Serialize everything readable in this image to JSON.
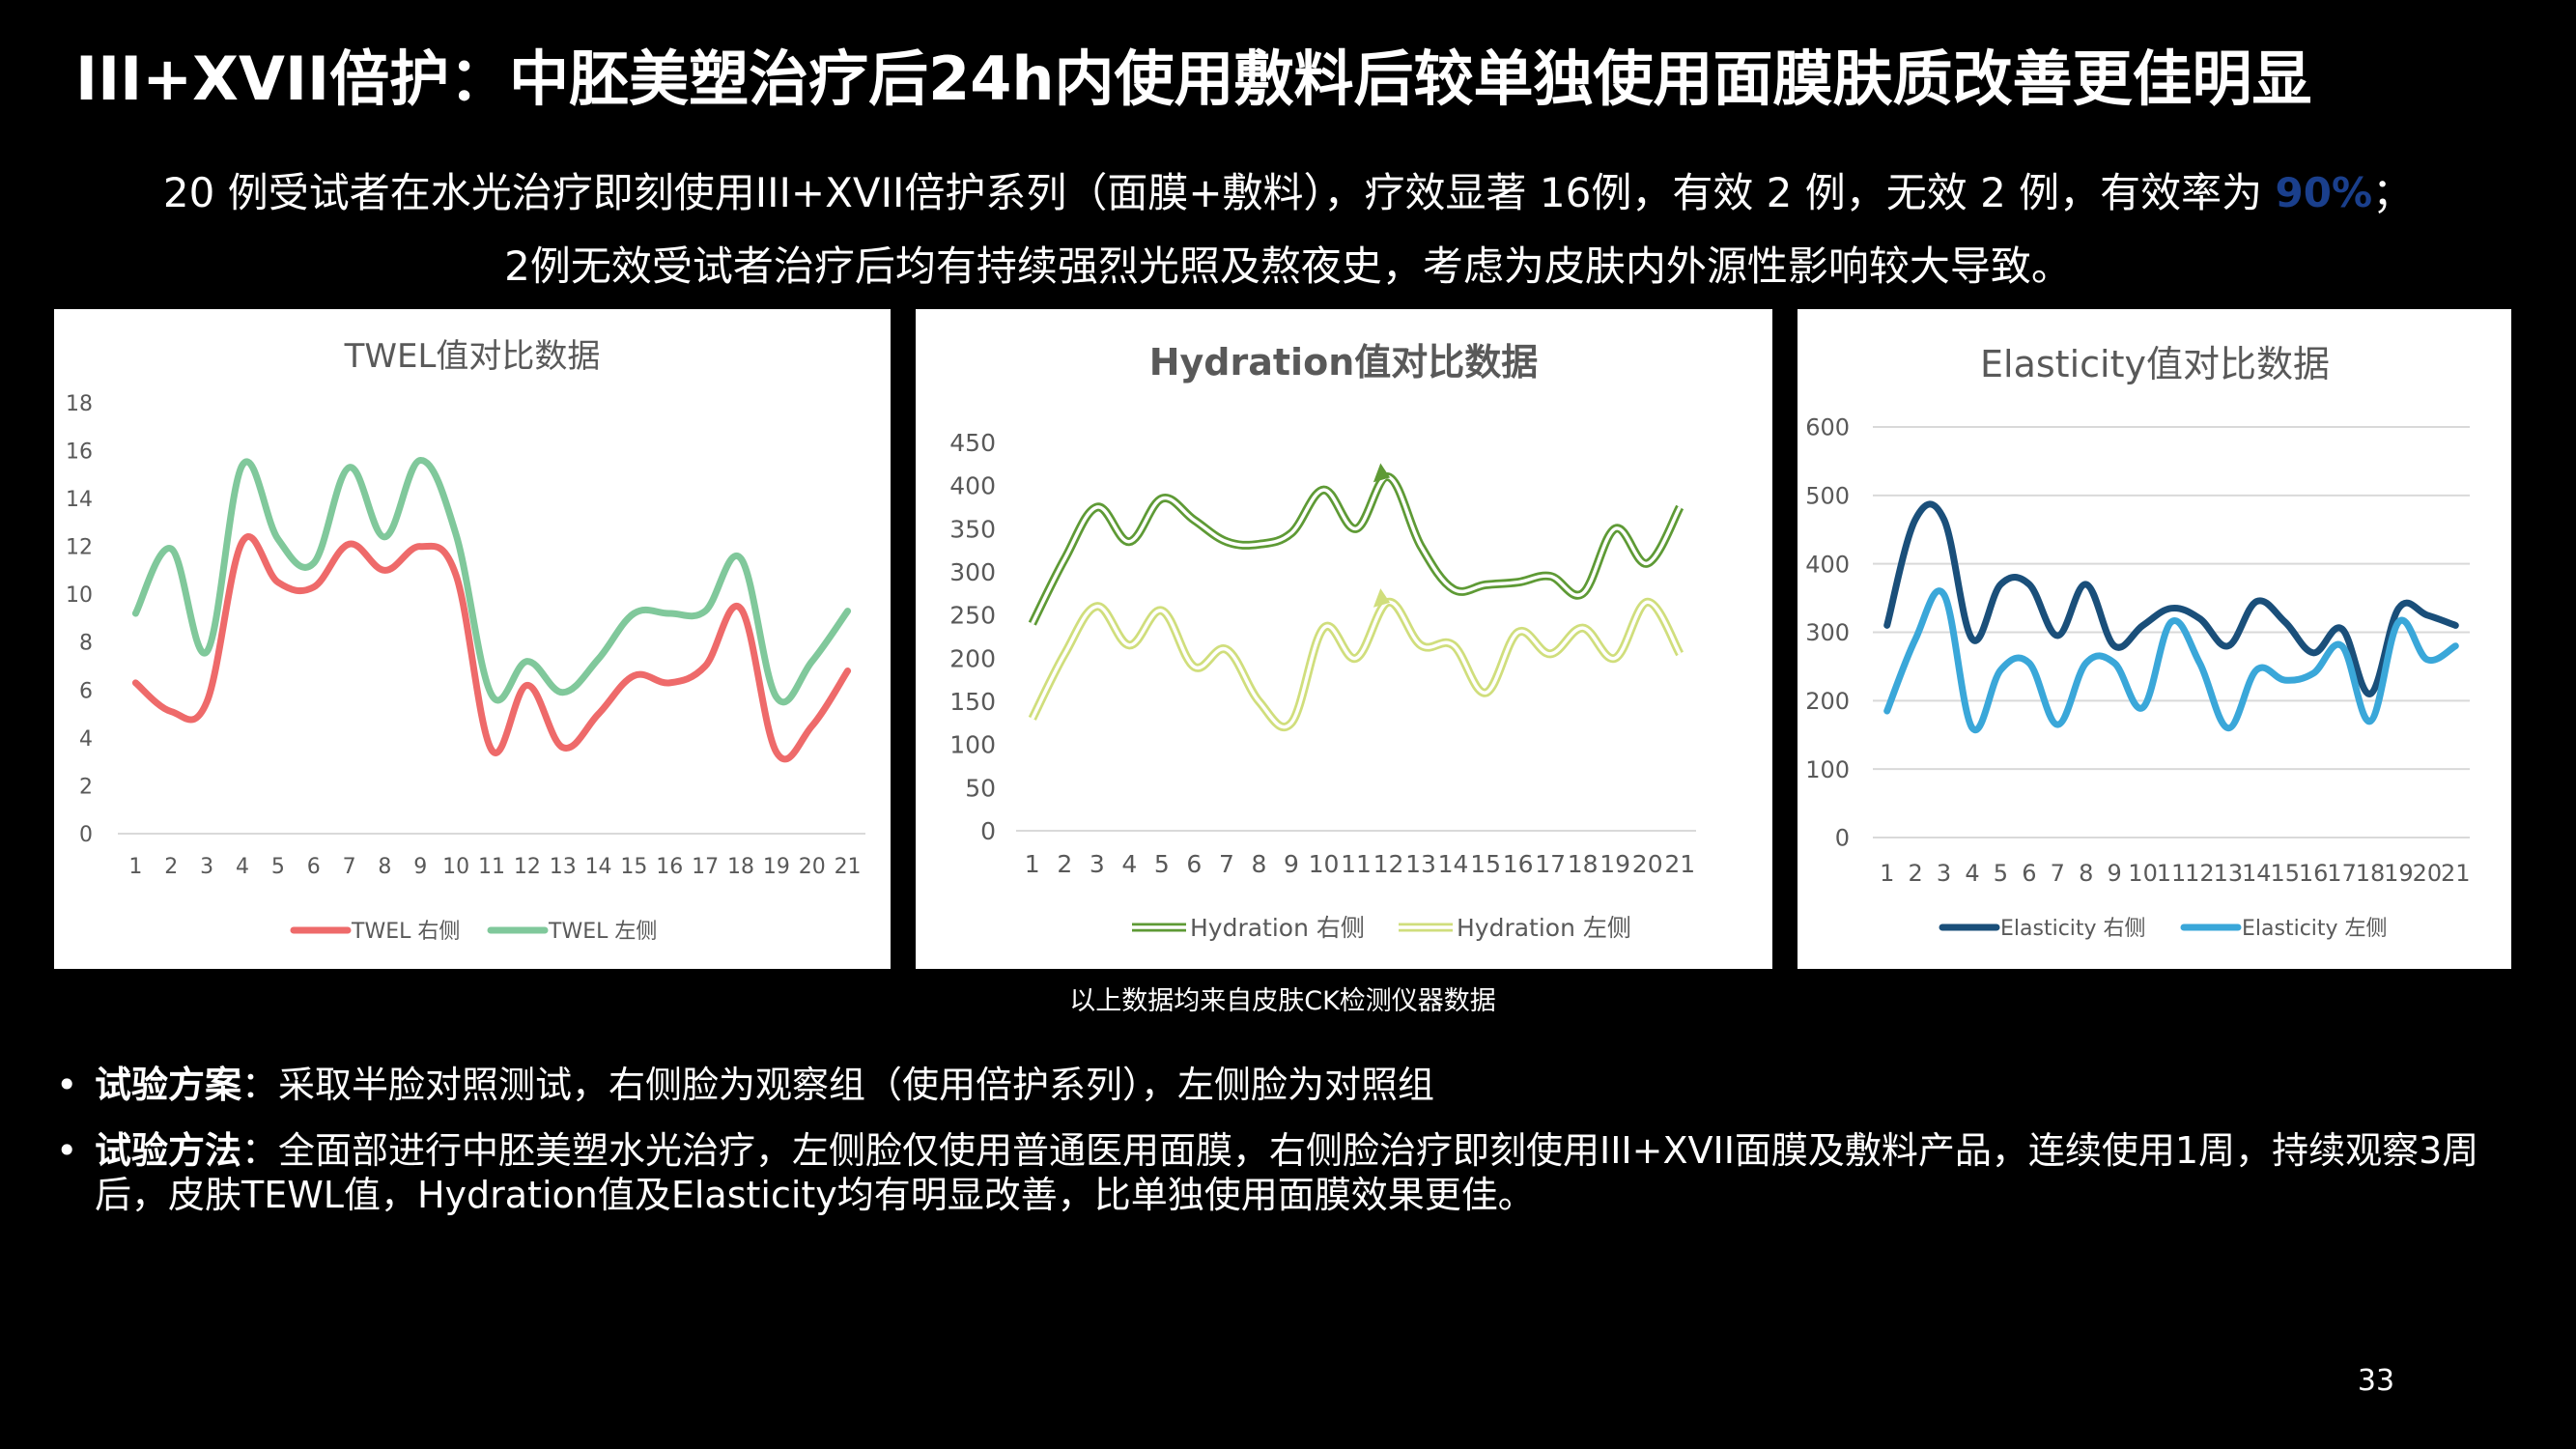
{
  "slide": {
    "title": "III+XVII倍护：中胚美塑治疗后24h内使用敷料后较单独使用面膜肤质改善更佳明显",
    "intro_line1_before": "20 例受试者在水光治疗即刻使用III+XVII倍护系列（面膜+敷料），疗效显著 16例，有效 2 例，无效 2 例，有效率为 ",
    "intro_highlight": "90%",
    "intro_line1_after": "；",
    "intro_line2": "2例无效受试者治疗后均有持续强烈光照及熬夜史，考虑为皮肤内外源性影响较大导致。",
    "caption": "以上数据均来自皮肤CK检测仪器数据",
    "bullet1_label": "试验方案",
    "bullet1_text": "：采取半脸对照测试，右侧脸为观察组（使用倍护系列），左侧脸为对照组",
    "bullet2_label": "试验方法",
    "bullet2_text": "：全面部进行中胚美塑水光治疗，左侧脸仅使用普通医用面膜，右侧脸治疗即刻使用III+XVII面膜及敷料产品，连续使用1周，持续观察3周后，皮肤TEWL值，Hydration值及Elasticity均有明显改善，比单独使用面膜效果更佳。",
    "bullet_mark": "•",
    "page_number": "33",
    "highlight_color": "#1a3f8c"
  },
  "chart_data": [
    {
      "type": "line",
      "title": "TWEL值对比数据",
      "categories": [
        "1",
        "2",
        "3",
        "4",
        "5",
        "6",
        "7",
        "8",
        "9",
        "10",
        "11",
        "12",
        "13",
        "14",
        "15",
        "16",
        "17",
        "18",
        "19",
        "20",
        "21"
      ],
      "ylim": [
        0,
        18
      ],
      "yticks": [
        0,
        2,
        4,
        6,
        8,
        10,
        12,
        14,
        16,
        18
      ],
      "grid": false,
      "legend": "bottom",
      "smooth": true,
      "series": [
        {
          "name": "TWEL 右侧",
          "color": "#ee6a6a",
          "values": [
            6.3,
            5.1,
            5.5,
            12.2,
            10.5,
            10.3,
            12.1,
            11.0,
            12.0,
            10.8,
            3.5,
            6.2,
            3.6,
            5.0,
            6.6,
            6.3,
            7.0,
            9.4,
            3.4,
            4.5,
            6.8
          ]
        },
        {
          "name": "TWEL 左侧",
          "color": "#80c89b",
          "values": [
            9.2,
            11.9,
            7.6,
            15.4,
            12.3,
            11.3,
            15.3,
            12.4,
            15.6,
            12.5,
            5.8,
            7.2,
            5.9,
            7.3,
            9.2,
            9.2,
            9.3,
            11.5,
            5.7,
            7.2,
            9.3
          ]
        }
      ]
    },
    {
      "type": "line",
      "title": "Hydration值对比数据",
      "categories": [
        "1",
        "2",
        "3",
        "4",
        "5",
        "6",
        "7",
        "8",
        "9",
        "10",
        "11",
        "12",
        "13",
        "14",
        "15",
        "16",
        "17",
        "18",
        "19",
        "20",
        "21"
      ],
      "ylim": [
        0,
        450
      ],
      "yticks": [
        0,
        50,
        100,
        150,
        200,
        250,
        300,
        350,
        400,
        450
      ],
      "grid": false,
      "legend": "bottom",
      "smooth": true,
      "series": [
        {
          "name": "Hydration 右侧",
          "color": "#5e9a35",
          "values": [
            240,
            315,
            375,
            335,
            385,
            360,
            335,
            332,
            345,
            395,
            350,
            410,
            330,
            280,
            285,
            288,
            295,
            275,
            350,
            310,
            375
          ]
        },
        {
          "name": "Hydration 左侧",
          "color": "#d0de7c",
          "values": [
            130,
            205,
            260,
            215,
            255,
            190,
            210,
            150,
            125,
            235,
            200,
            265,
            215,
            215,
            160,
            230,
            205,
            235,
            200,
            265,
            205
          ]
        }
      ]
    },
    {
      "type": "line",
      "title": "Elasticity值对比数据",
      "categories": [
        "1",
        "2",
        "3",
        "4",
        "5",
        "6",
        "7",
        "8",
        "9",
        "10",
        "11",
        "12",
        "13",
        "14",
        "15",
        "16",
        "17",
        "18",
        "19",
        "20",
        "21"
      ],
      "ylim": [
        0,
        600
      ],
      "yticks": [
        0,
        100,
        200,
        300,
        400,
        500,
        600
      ],
      "grid": true,
      "legend": "bottom",
      "smooth": true,
      "series": [
        {
          "name": "Elasticity 右侧",
          "color": "#1a4f7a",
          "values": [
            310,
            465,
            465,
            290,
            370,
            370,
            295,
            370,
            280,
            310,
            335,
            320,
            280,
            345,
            315,
            270,
            305,
            210,
            335,
            325,
            310
          ]
        },
        {
          "name": "Elasticity 左侧",
          "color": "#3aa7d9",
          "values": [
            185,
            290,
            355,
            160,
            245,
            255,
            165,
            255,
            255,
            190,
            315,
            255,
            160,
            245,
            230,
            240,
            280,
            170,
            315,
            260,
            280
          ]
        }
      ]
    }
  ]
}
